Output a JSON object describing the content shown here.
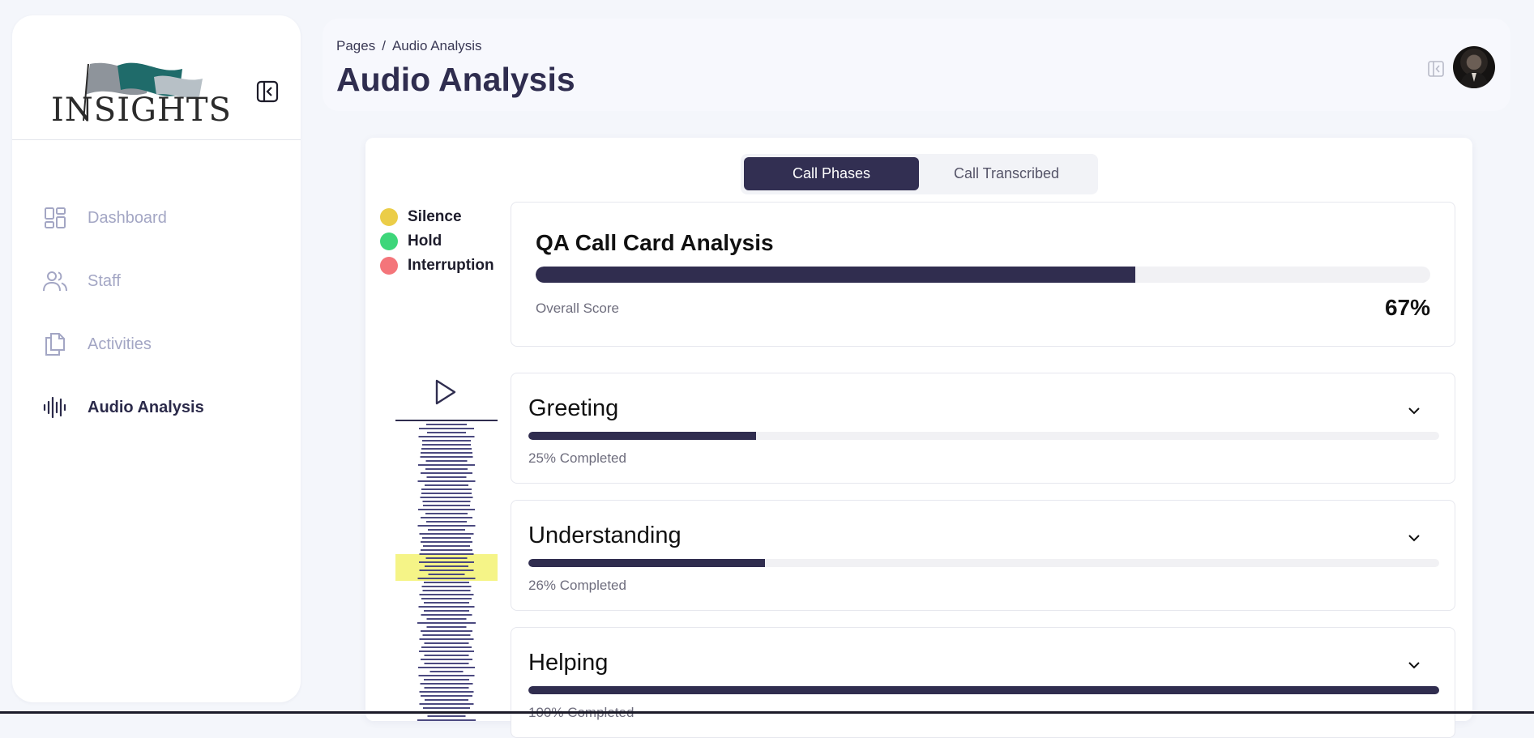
{
  "brand": {
    "logo_text": "INSIGHTS",
    "accent": "#302d4f",
    "flag_colors": [
      "#1f6b6a",
      "#9aa0a6"
    ]
  },
  "sidebar": {
    "items": [
      {
        "label": "Dashboard",
        "icon": "dashboard-grid-icon",
        "active": false
      },
      {
        "label": "Staff",
        "icon": "users-icon",
        "active": false
      },
      {
        "label": "Activities",
        "icon": "documents-icon",
        "active": false
      },
      {
        "label": "Audio Analysis",
        "icon": "audio-wave-icon",
        "active": true
      }
    ]
  },
  "header": {
    "breadcrumb": {
      "root": "Pages",
      "separator": "/",
      "current": "Audio Analysis"
    },
    "title": "Audio Analysis"
  },
  "tabs": {
    "active": "Call Phases",
    "inactive": "Call Transcribed"
  },
  "legend": [
    {
      "label": "Silence",
      "color": "#ebcd48"
    },
    {
      "label": "Hold",
      "color": "#3dd67a"
    },
    {
      "label": "Interruption",
      "color": "#f4757a"
    }
  ],
  "qa_card": {
    "title": "QA Call Card Analysis",
    "subtitle": "Overall Score",
    "score_text": "67%",
    "score_fraction": 0.67
  },
  "phases": [
    {
      "title": "Greeting",
      "status": "25% Completed",
      "fraction": 0.25
    },
    {
      "title": "Understanding",
      "status": "26% Completed",
      "fraction": 0.26
    },
    {
      "title": "Helping",
      "status": "100% Completed",
      "fraction": 1.0
    }
  ],
  "player": {
    "highlight_color": "#f4f37a",
    "wave_color": "#4c4a80"
  }
}
